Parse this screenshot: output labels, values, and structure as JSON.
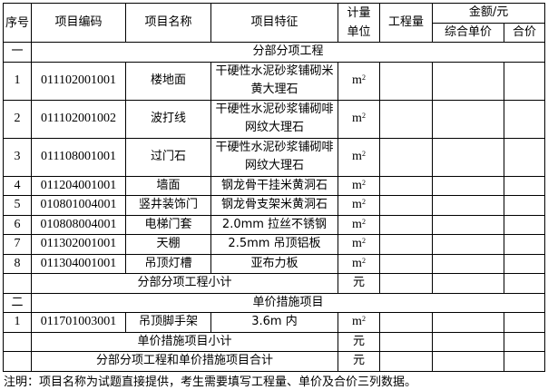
{
  "header": {
    "seq": "序号",
    "code": "项目编码",
    "name": "项目名称",
    "feature": "项目特征",
    "unit": "计量单位",
    "quantity": "工程量",
    "amount": "金额/元",
    "unit_price": "综合单价",
    "total_price": "合价"
  },
  "section1": {
    "seq": "一",
    "title": "分部分项工程",
    "rows": [
      {
        "seq": "1",
        "code": "011102001001",
        "name": "楼地面",
        "feature": "干硬性水泥砂浆铺砌米黄大理石",
        "unit": "m",
        "unit_sup": "2"
      },
      {
        "seq": "2",
        "code": "011102001002",
        "name": "波打线",
        "feature": "干硬性水泥砂浆铺砌啡网纹大理石",
        "unit": "m",
        "unit_sup": "2"
      },
      {
        "seq": "3",
        "code": "011108001001",
        "name": "过门石",
        "feature": "干硬性水泥砂浆铺砌啡网纹大理石",
        "unit": "m",
        "unit_sup": "2"
      },
      {
        "seq": "4",
        "code": "011204001001",
        "name": "墙面",
        "feature": "钢龙骨干挂米黄洞石",
        "unit": "m",
        "unit_sup": "2"
      },
      {
        "seq": "5",
        "code": "010801004001",
        "name": "竖井装饰门",
        "feature": "钢龙骨支架米黄洞石",
        "unit": "m",
        "unit_sup": "2"
      },
      {
        "seq": "6",
        "code": "010808004001",
        "name": "电梯门套",
        "feature": "2.0mm 拉丝不锈钢",
        "unit": "m",
        "unit_sup": "2"
      },
      {
        "seq": "7",
        "code": "011302001001",
        "name": "天棚",
        "feature": "2.5mm 吊顶铝板",
        "unit": "m",
        "unit_sup": "2"
      },
      {
        "seq": "8",
        "code": "011304001001",
        "name": "吊顶灯槽",
        "feature": "亚布力板",
        "unit": "m",
        "unit_sup": "2"
      }
    ],
    "subtotal_label": "分部分项工程小计",
    "subtotal_unit": "元"
  },
  "section2": {
    "seq": "二",
    "title": "单价措施项目",
    "rows": [
      {
        "seq": "1",
        "code": "011701003001",
        "name": "吊顶脚手架",
        "feature": "3.6m 内",
        "unit": "m",
        "unit_sup": "2"
      }
    ],
    "subtotal_label": "单价措施项目小计",
    "subtotal_unit": "元"
  },
  "grand_total": {
    "label": "分部分项工程和单价措施项目合计",
    "unit": "元"
  },
  "note": "注明：项目名称为试题直接提供，考生需要填写工程量、单价及合价三列数据。"
}
